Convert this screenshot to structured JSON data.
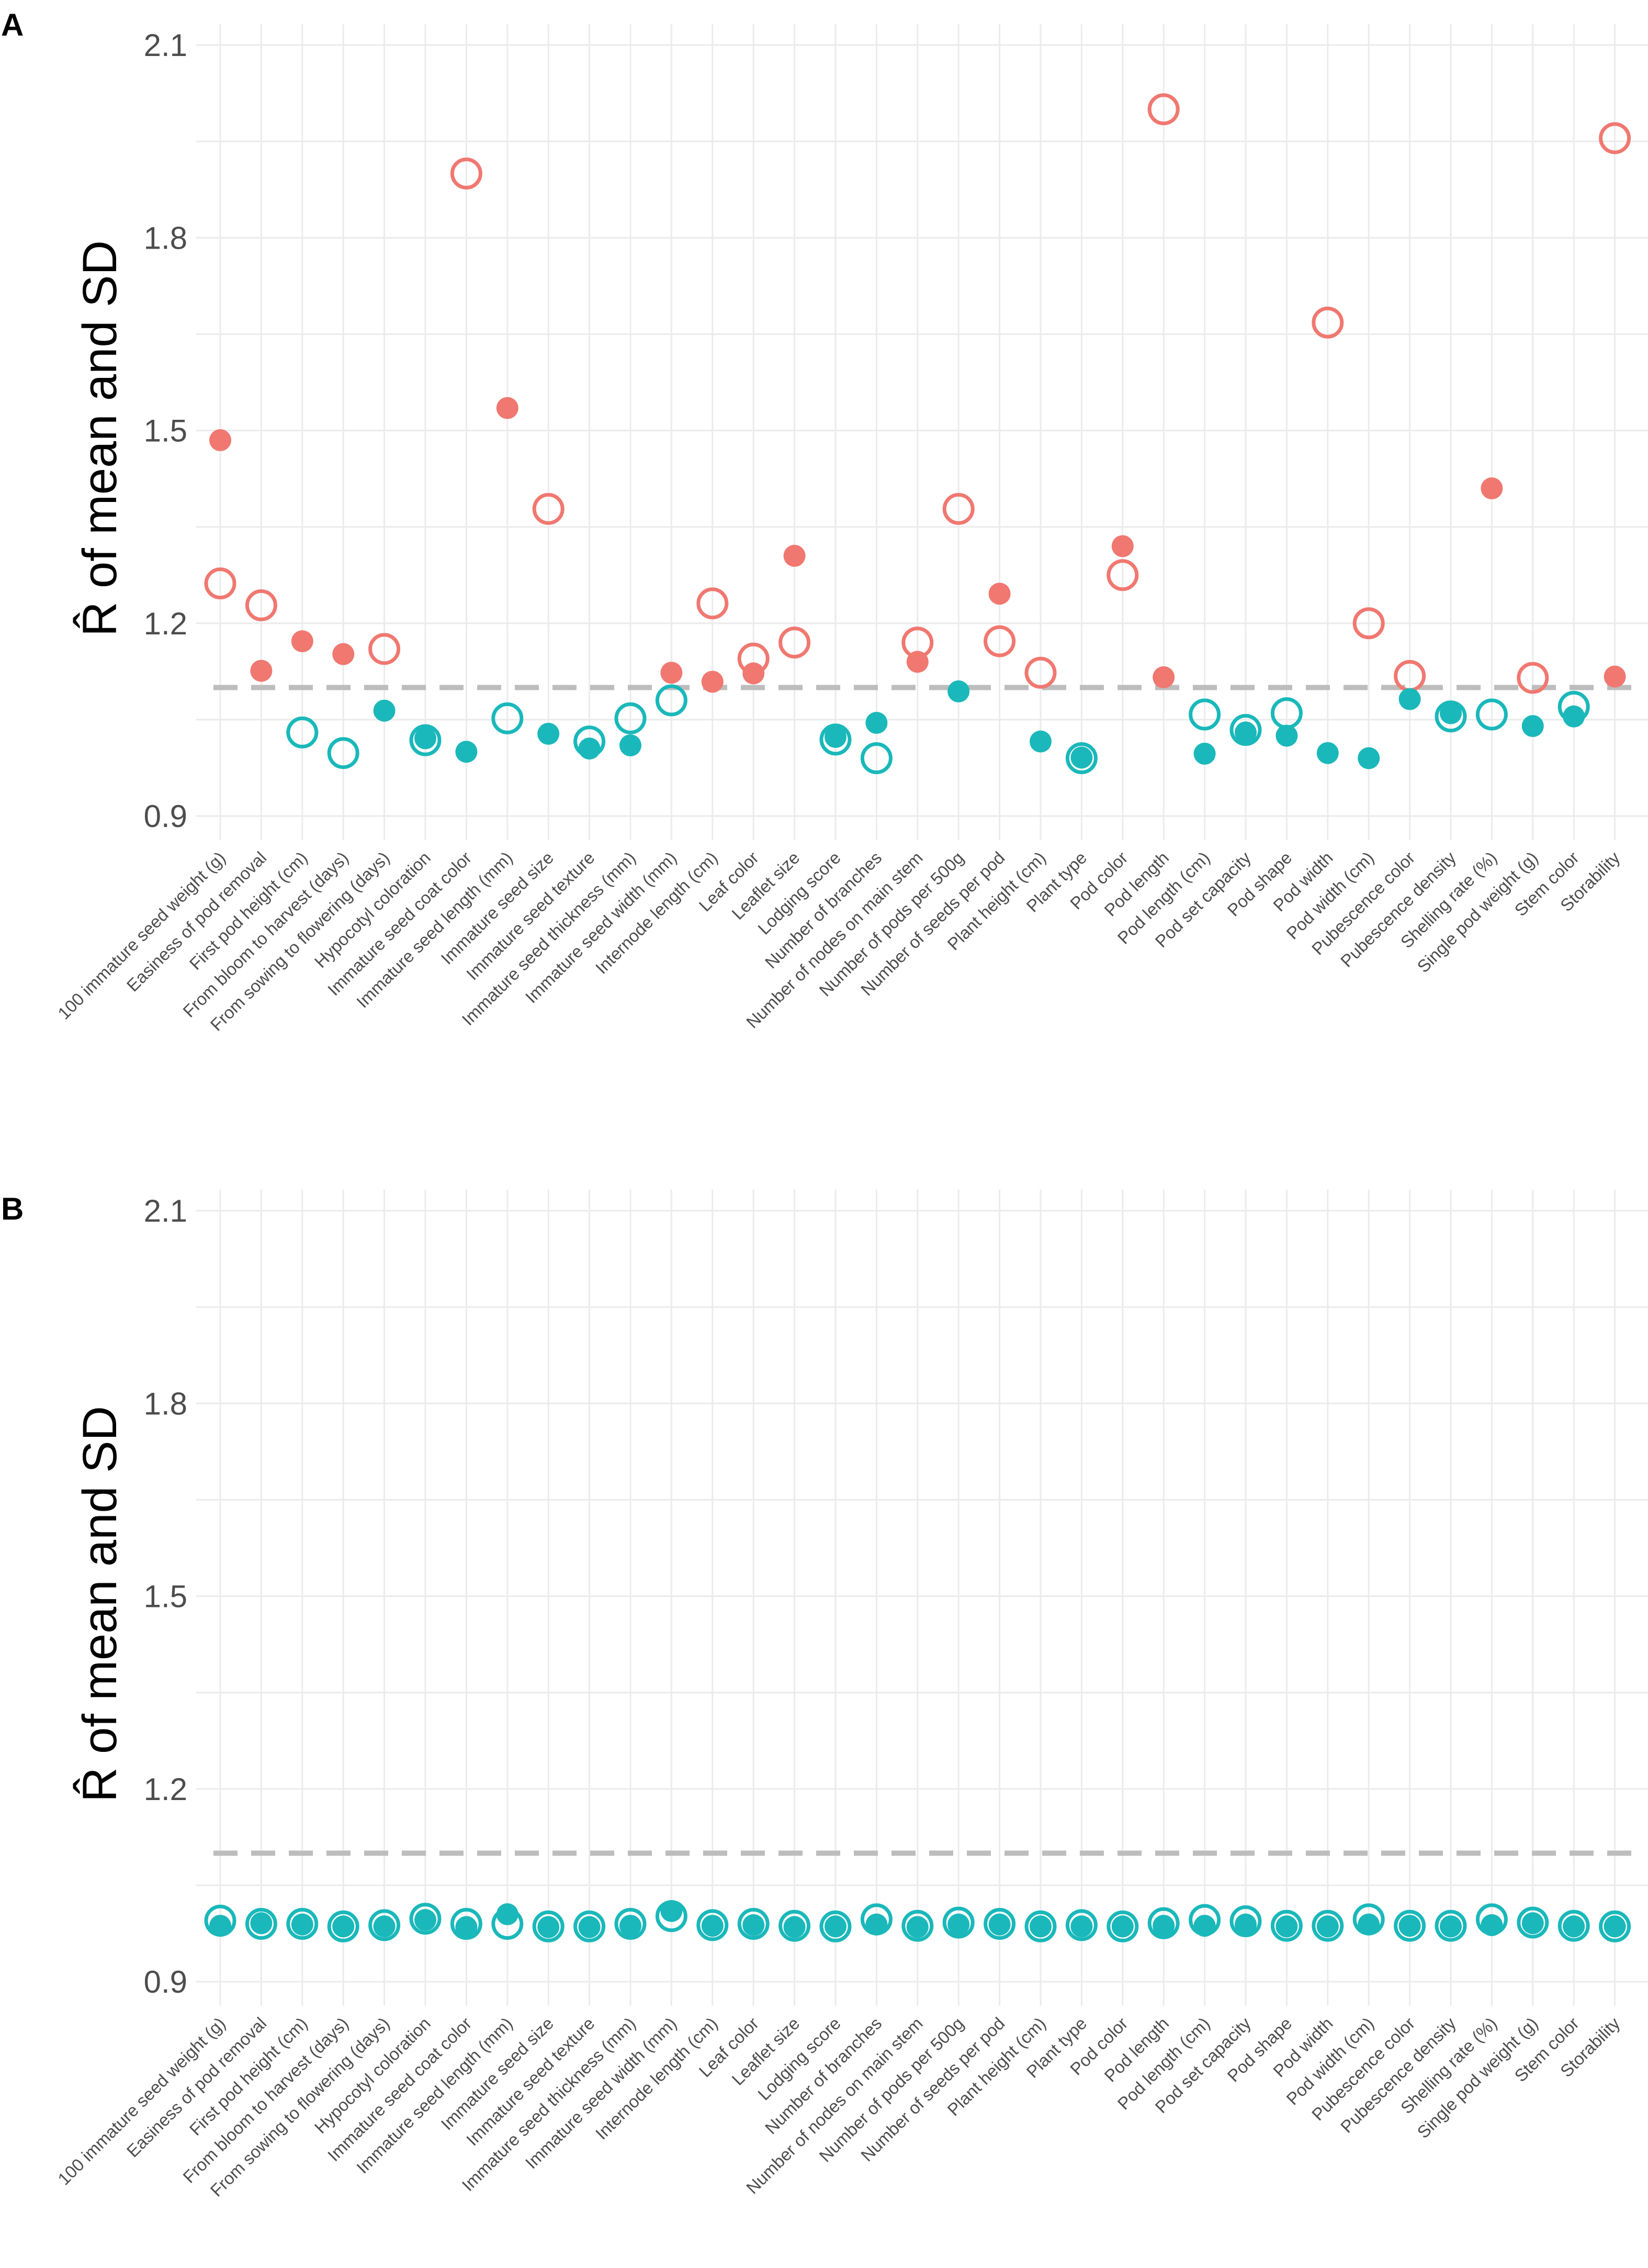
{
  "chart_data": [
    {
      "panel_label": "A",
      "type": "scatter",
      "ylabel": "R̂ of mean and SD",
      "y_ticks": [
        "0.9",
        "1.2",
        "1.5",
        "1.8",
        "2.1"
      ],
      "ylim": [
        0.87,
        2.13
      ],
      "threshold": 1.1,
      "categories": [
        "100 immature seed weight (g)",
        "Easiness of pod removal",
        "First pod height (cm)",
        "From bloom to harvest (days)",
        "From sowing to flowering (days)",
        "Hypocotyl coloration",
        "Immature seed coat color",
        "Immature seed length (mm)",
        "Immature seed size",
        "Immature seed texture",
        "Immature seed thickness (mm)",
        "Immature seed width (mm)",
        "Internode length (cm)",
        "Leaf color",
        "Leaflet size",
        "Lodging score",
        "Number of branches",
        "Number of nodes on main stem",
        "Number of pods per 500g",
        "Number of seeds per pod",
        "Plant height (cm)",
        "Plant type",
        "Pod color",
        "Pod length",
        "Pod length (cm)",
        "Pod set capacity",
        "Pod shape",
        "Pod width",
        "Pod width (cm)",
        "Pubescence color",
        "Pubescence density",
        "Shelling rate (%)",
        "Single pod weight (g)",
        "Stem color",
        "Storability"
      ],
      "series": [
        {
          "name": "mean",
          "marker": "filled",
          "values": [
            1.485,
            1.126,
            1.172,
            1.152,
            1.064,
            1.021,
            1.0,
            1.535,
            1.028,
            1.005,
            1.01,
            1.123,
            1.109,
            1.122,
            1.305,
            1.023,
            1.045,
            1.14,
            1.094,
            1.246,
            1.016,
            0.991,
            1.32,
            1.116,
            0.997,
            1.03,
            1.025,
            0.998,
            0.99,
            1.082,
            1.06,
            1.41,
            1.04,
            1.055,
            1.117
          ]
        },
        {
          "name": "SD",
          "marker": "open",
          "values": [
            1.262,
            1.228,
            1.03,
            0.998,
            1.16,
            1.018,
            1.9,
            1.052,
            1.378,
            1.016,
            1.052,
            1.08,
            1.231,
            1.145,
            1.17,
            1.019,
            0.99,
            1.17,
            1.378,
            1.172,
            1.123,
            0.99,
            1.275,
            2.0,
            1.058,
            1.034,
            1.06,
            1.668,
            1.2,
            1.118,
            1.055,
            1.058,
            1.115,
            1.07,
            1.955
          ]
        }
      ],
      "colors": {
        "above_threshold": "#f07870",
        "below_threshold": "#1ab8ba"
      }
    },
    {
      "panel_label": "B",
      "type": "scatter",
      "ylabel": "R̂ of mean and SD",
      "y_ticks": [
        "0.9",
        "1.2",
        "1.5",
        "1.8",
        "2.1"
      ],
      "ylim": [
        0.87,
        2.13
      ],
      "threshold": 1.1,
      "categories": [
        "100 immature seed weight (g)",
        "Easiness of pod removal",
        "First pod height (cm)",
        "From bloom to harvest (days)",
        "From sowing to flowering (days)",
        "Hypocotyl coloration",
        "Immature seed coat color",
        "Immature seed length (mm)",
        "Immature seed size",
        "Immature seed texture",
        "Immature seed thickness (mm)",
        "Immature seed width (mm)",
        "Internode length (cm)",
        "Leaf color",
        "Leaflet size",
        "Lodging score",
        "Number of branches",
        "Number of nodes on main stem",
        "Number of pods per 500g",
        "Number of seeds per pod",
        "Plant height (cm)",
        "Plant type",
        "Pod color",
        "Pod length",
        "Pod length (cm)",
        "Pod set capacity",
        "Pod shape",
        "Pod width",
        "Pod width (cm)",
        "Pubescence color",
        "Pubescence density",
        "Shelling rate (%)",
        "Single pod weight (g)",
        "Stem color",
        "Storability"
      ],
      "series": [
        {
          "name": "mean",
          "marker": "filled",
          "values": [
            0.987,
            0.991,
            0.989,
            0.986,
            0.986,
            0.996,
            0.985,
            1.005,
            0.985,
            0.985,
            0.987,
            1.01,
            0.987,
            0.988,
            0.985,
            0.986,
            0.989,
            0.985,
            0.989,
            0.989,
            0.986,
            0.986,
            0.986,
            0.987,
            0.987,
            0.989,
            0.986,
            0.986,
            0.989,
            0.987,
            0.986,
            0.988,
            0.991,
            0.986,
            0.986
          ]
        },
        {
          "name": "SD",
          "marker": "open",
          "values": [
            0.995,
            0.99,
            0.99,
            0.986,
            0.988,
            0.998,
            0.99,
            0.99,
            0.986,
            0.986,
            0.99,
            1.002,
            0.988,
            0.99,
            0.987,
            0.986,
            0.997,
            0.987,
            0.992,
            0.99,
            0.986,
            0.988,
            0.986,
            0.991,
            0.996,
            0.994,
            0.987,
            0.987,
            0.997,
            0.987,
            0.987,
            0.997,
            0.992,
            0.987,
            0.986
          ]
        }
      ],
      "colors": {
        "above_threshold": "#f07870",
        "below_threshold": "#1ab8ba"
      }
    }
  ]
}
